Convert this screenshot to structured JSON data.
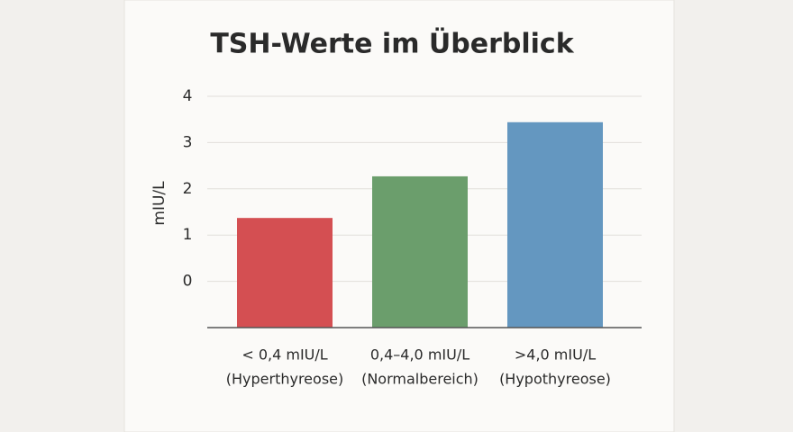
{
  "chart_data": {
    "type": "bar",
    "title": "TSH-Werte im Überblick",
    "y_label": "mIU/L",
    "categories": [
      [
        "< 0,4 mIU/L",
        "(Hyperthyreose)"
      ],
      [
        "0,4–4,0 mIU/L",
        "(Normalbereich)"
      ],
      [
        ">4,0 mIU/L",
        "(Hypothyreose)"
      ]
    ],
    "values": [
      1.37,
      2.27,
      3.44
    ],
    "colors": [
      "#d44f52",
      "#6b9e6c",
      "#6497c0"
    ],
    "ylim": [
      -1,
      4
    ],
    "yticks": [
      0,
      1,
      2,
      3,
      4
    ],
    "grid": true
  }
}
